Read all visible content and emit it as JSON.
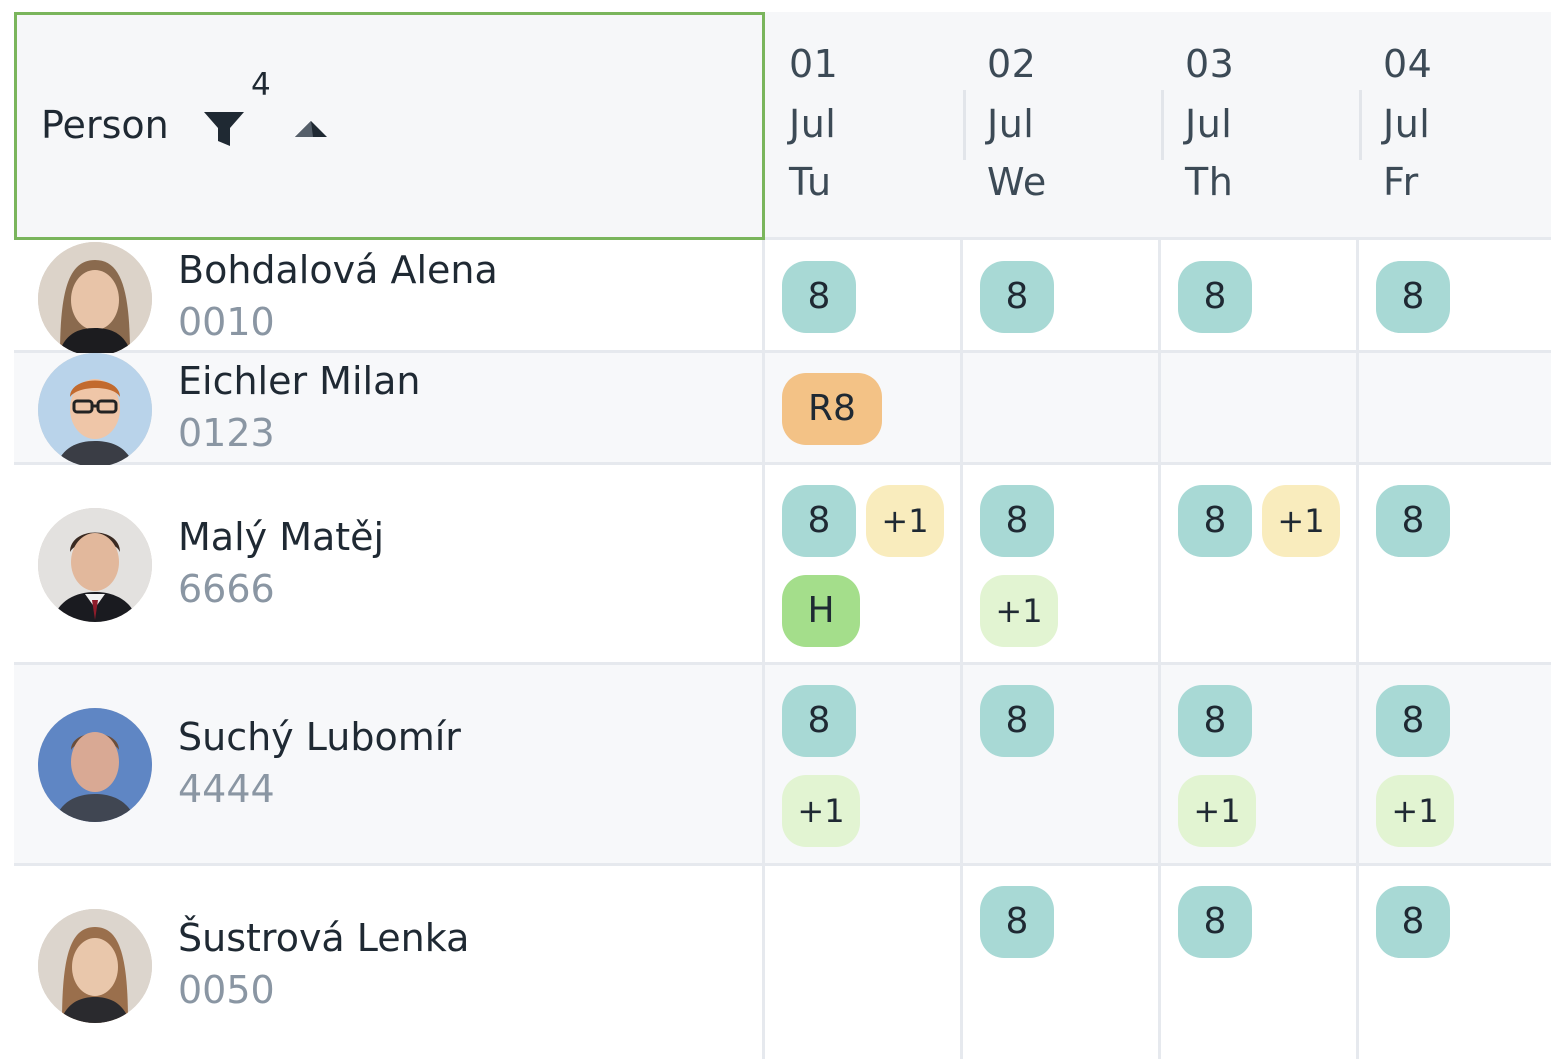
{
  "header": {
    "person_label": "Person",
    "filter_count": "4",
    "days": [
      {
        "day": "01",
        "month": "Jul",
        "weekday": "Tu"
      },
      {
        "day": "02",
        "month": "Jul",
        "weekday": "We"
      },
      {
        "day": "03",
        "month": "Jul",
        "weekday": "Th"
      },
      {
        "day": "04",
        "month": "Jul",
        "weekday": "Fr"
      }
    ]
  },
  "rows": [
    {
      "name": "Bohdalová Alena",
      "code": "0010",
      "cells": [
        [
          {
            "label": "8",
            "kind": "teal"
          }
        ],
        [
          {
            "label": "8",
            "kind": "teal"
          }
        ],
        [
          {
            "label": "8",
            "kind": "teal"
          }
        ],
        [
          {
            "label": "8",
            "kind": "teal"
          }
        ]
      ]
    },
    {
      "name": "Eichler Milan",
      "code": "0123",
      "cells": [
        [
          {
            "label": "R8",
            "kind": "orange"
          }
        ],
        [],
        [],
        []
      ]
    },
    {
      "name": "Malý Matěj",
      "code": "6666",
      "cells": [
        [
          {
            "label": "8",
            "kind": "teal"
          },
          {
            "label": "+1",
            "kind": "yellow"
          },
          {
            "label": "H",
            "kind": "green"
          }
        ],
        [
          {
            "label": "8",
            "kind": "teal"
          },
          {
            "label": "+1",
            "kind": "lightgreen"
          }
        ],
        [
          {
            "label": "8",
            "kind": "teal"
          },
          {
            "label": "+1",
            "kind": "yellow"
          }
        ],
        [
          {
            "label": "8",
            "kind": "teal"
          }
        ]
      ]
    },
    {
      "name": "Suchý Lubomír",
      "code": "4444",
      "cells": [
        [
          {
            "label": "8",
            "kind": "teal"
          },
          {
            "label": "+1",
            "kind": "lightgreen"
          }
        ],
        [
          {
            "label": "8",
            "kind": "teal"
          }
        ],
        [
          {
            "label": "8",
            "kind": "teal"
          },
          {
            "label": "+1",
            "kind": "lightgreen"
          }
        ],
        [
          {
            "label": "8",
            "kind": "teal"
          },
          {
            "label": "+1",
            "kind": "lightgreen"
          }
        ]
      ]
    },
    {
      "name": "Šustrová Lenka",
      "code": "0050",
      "cells": [
        [],
        [
          {
            "label": "8",
            "kind": "teal"
          }
        ],
        [
          {
            "label": "8",
            "kind": "teal"
          }
        ],
        [
          {
            "label": "8",
            "kind": "teal"
          }
        ]
      ]
    }
  ],
  "colors": {
    "header_border": "#7ab55c",
    "chip_teal": "#a8d9d5",
    "chip_orange": "#f3c286",
    "chip_yellow": "#f9ecbd",
    "chip_lightgreen": "#e2f4d2",
    "chip_green": "#a4de8b"
  },
  "icons": {
    "filter": "filter-icon",
    "sort": "sort-ascending-icon",
    "avatar": "person-photo"
  }
}
